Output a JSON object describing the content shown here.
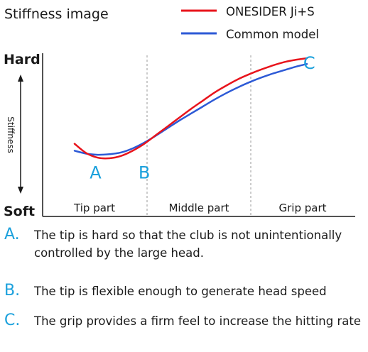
{
  "chart_data": {
    "type": "line",
    "title": "Stiffness image",
    "ylabel": "Stiffness",
    "y_top_label": "Hard",
    "y_bottom_label": "Soft",
    "ylim": [
      0,
      10
    ],
    "xlim": [
      0,
      10
    ],
    "categories": [
      "Tip part",
      "Middle part",
      "Grip part"
    ],
    "series": [
      {
        "name": "ONESIDER Ji+S",
        "color": "#e8141c",
        "x": [
          0,
          0.5,
          1.0,
          1.5,
          2.0,
          2.5,
          3.0,
          3.5,
          4.0,
          4.5,
          5.0,
          5.5,
          6.0,
          6.5,
          7.0,
          7.5,
          8.0,
          8.5,
          9.0,
          9.5,
          10.0
        ],
        "values": [
          2.6,
          1.8,
          1.4,
          1.35,
          1.55,
          2.0,
          2.6,
          3.35,
          4.1,
          4.85,
          5.6,
          6.3,
          7.0,
          7.6,
          8.15,
          8.6,
          9.0,
          9.35,
          9.65,
          9.85,
          10.0
        ]
      },
      {
        "name": "Common model",
        "color": "#2d5ad6",
        "x": [
          0,
          0.5,
          1.0,
          1.5,
          2.0,
          2.5,
          3.0,
          3.5,
          4.0,
          4.5,
          5.0,
          5.5,
          6.0,
          6.5,
          7.0,
          7.5,
          8.0,
          8.5,
          9.0,
          9.5,
          10.0
        ],
        "values": [
          2.0,
          1.75,
          1.65,
          1.7,
          1.85,
          2.2,
          2.7,
          3.3,
          3.95,
          4.6,
          5.2,
          5.8,
          6.4,
          6.95,
          7.45,
          7.9,
          8.3,
          8.65,
          8.95,
          9.25,
          9.5
        ]
      }
    ],
    "annotations": [
      {
        "label": "A",
        "x": 0.9,
        "y": 1.0
      },
      {
        "label": "B",
        "x": 3.0,
        "y": 1.0
      },
      {
        "label": "C",
        "x": 10.1,
        "y": 10.5
      }
    ],
    "legend_position": "top-right",
    "grid": false,
    "annotation_color": "#1aa0dc"
  },
  "notes": [
    {
      "letter": "A.",
      "text": "The tip is hard so that the club is not unintentionally controlled by the large head."
    },
    {
      "letter": "B.",
      "text": "The tip is flexible enough to generate head speed"
    },
    {
      "letter": "C.",
      "text": "The grip provides a firm feel to increase the hitting rate"
    }
  ]
}
